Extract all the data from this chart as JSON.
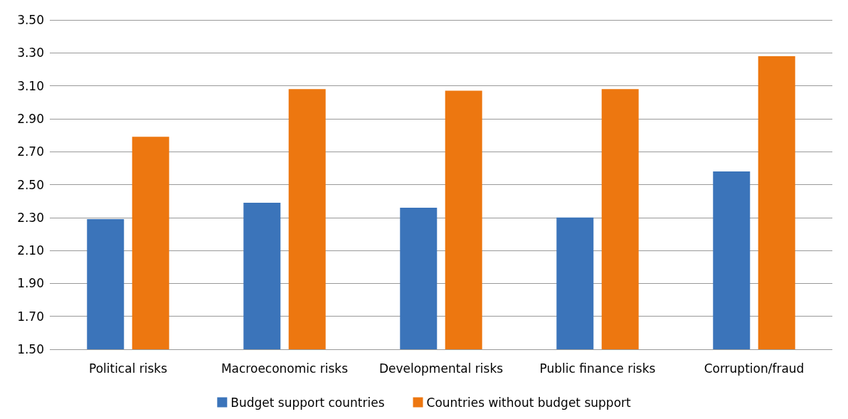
{
  "chart_data": {
    "type": "bar",
    "categories": [
      "Political risks",
      "Macroeconomic risks",
      "Developmental risks",
      "Public finance risks",
      "Corruption/fraud"
    ],
    "series": [
      {
        "name": "Budget support countries",
        "color": "#3b74ba",
        "values": [
          2.29,
          2.39,
          2.36,
          2.3,
          2.58
        ]
      },
      {
        "name": "Countries without budget support",
        "color": "#ed7710",
        "values": [
          2.79,
          3.08,
          3.07,
          3.08,
          3.28
        ]
      }
    ],
    "ylim": [
      1.5,
      3.5
    ],
    "yticks": [
      {
        "value": 1.5,
        "label": "1.50"
      },
      {
        "value": 1.7,
        "label": "1.70"
      },
      {
        "value": 1.9,
        "label": "1.90"
      },
      {
        "value": 2.1,
        "label": "2.10"
      },
      {
        "value": 2.3,
        "label": "2.30"
      },
      {
        "value": 2.5,
        "label": "2.50"
      },
      {
        "value": 2.7,
        "label": "2.70"
      },
      {
        "value": 2.9,
        "label": "2.90"
      },
      {
        "value": 3.1,
        "label": "3.10"
      },
      {
        "value": 3.3,
        "label": "3.30"
      },
      {
        "value": 3.5,
        "label": "3.50"
      }
    ],
    "grid": "y",
    "legend": "bottom"
  }
}
